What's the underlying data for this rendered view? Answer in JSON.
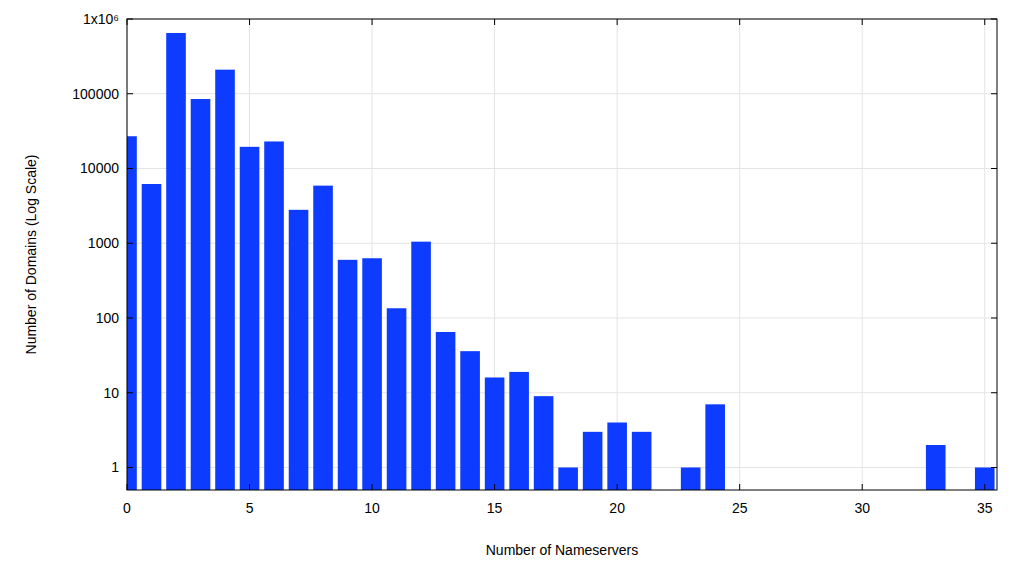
{
  "chart_data": {
    "type": "bar",
    "x_label": "Number of Nameservers",
    "y_label": "Number of Domains (Log Scale)",
    "x": [
      0,
      1,
      2,
      3,
      4,
      5,
      6,
      7,
      8,
      9,
      10,
      11,
      12,
      13,
      14,
      15,
      16,
      17,
      18,
      19,
      20,
      21,
      23,
      24,
      33,
      35
    ],
    "values": [
      27000,
      6200,
      650000,
      85000,
      210000,
      19500,
      23000,
      2800,
      5900,
      600,
      630,
      135,
      1050,
      65,
      36,
      16,
      19,
      9,
      1,
      3,
      4,
      3,
      1,
      7,
      2,
      1
    ],
    "color": "#0d3bff",
    "xlim": [
      0,
      35.5
    ],
    "xticks": [
      0,
      5,
      10,
      15,
      20,
      25,
      30,
      35
    ],
    "ylim": [
      0.5,
      1000000
    ],
    "yticks": [
      1,
      10,
      100,
      1000,
      10000,
      100000,
      {
        "value": 1000000,
        "label": "1x10⁶"
      }
    ],
    "log": "y",
    "grid": true
  }
}
